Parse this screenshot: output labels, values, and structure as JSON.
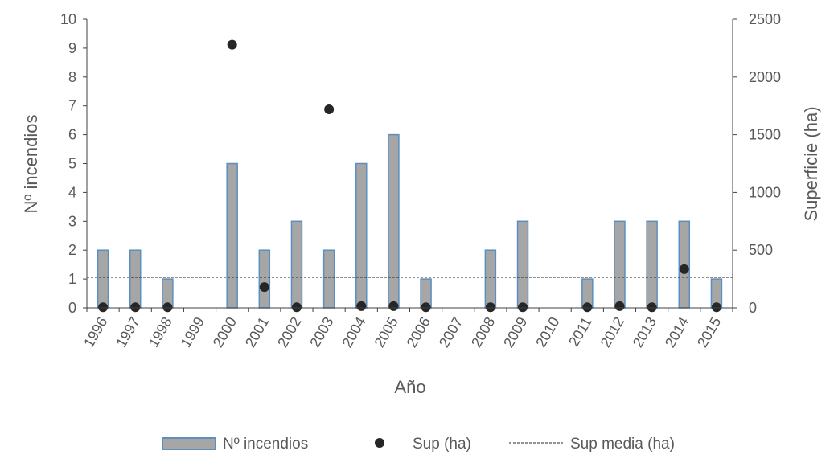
{
  "chart_data": {
    "type": "bar",
    "categories": [
      "1996",
      "1997",
      "1998",
      "1999",
      "2000",
      "2001",
      "2002",
      "2003",
      "2004",
      "2005",
      "2006",
      "2007",
      "2008",
      "2009",
      "2010",
      "2011",
      "2012",
      "2013",
      "2014",
      "2015"
    ],
    "series": [
      {
        "name": "Nº incendios",
        "kind": "bar",
        "axis": "left",
        "values": [
          2,
          2,
          1,
          0,
          5,
          2,
          3,
          2,
          5,
          6,
          1,
          0,
          2,
          3,
          0,
          1,
          3,
          3,
          3,
          1
        ],
        "fill": "#a6a6a6",
        "stroke": "#5b8fbf"
      },
      {
        "name": "Sup (ha)",
        "kind": "scatter",
        "axis": "right",
        "values": [
          5,
          5,
          5,
          null,
          2280,
          180,
          5,
          1720,
          15,
          15,
          5,
          null,
          5,
          5,
          null,
          5,
          15,
          5,
          335,
          5
        ],
        "color": "#262626"
      },
      {
        "name": "Sup media (ha)",
        "kind": "line",
        "style": "dashed",
        "axis": "right",
        "value": 265,
        "color": "#262626"
      }
    ],
    "xlabel": "Año",
    "ylabel": "Nº incendios",
    "y2label": "Superficie (ha)",
    "ylim": [
      0,
      10
    ],
    "yticks": [
      "0",
      "1",
      "2",
      "3",
      "4",
      "5",
      "6",
      "7",
      "8",
      "9",
      "10"
    ],
    "y2lim": [
      0,
      2500
    ],
    "y2ticks": [
      "0",
      "500",
      "1000",
      "1500",
      "2000",
      "2500"
    ],
    "grid": false,
    "legend_position": "bottom"
  }
}
